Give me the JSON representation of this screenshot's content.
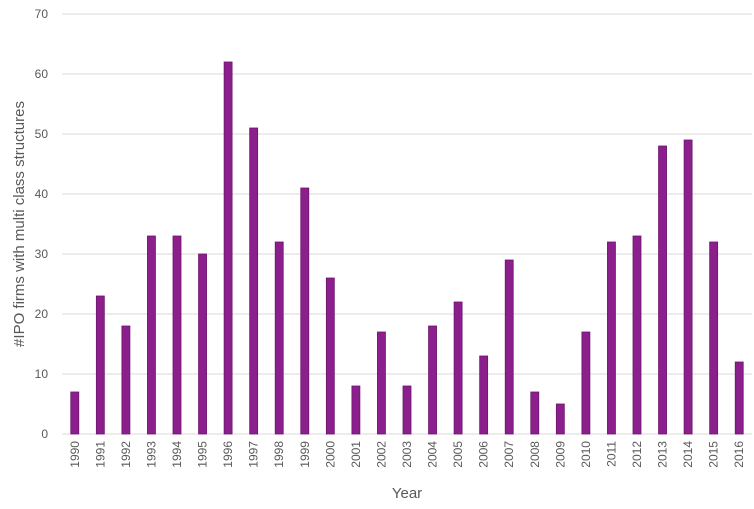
{
  "chart_data": {
    "type": "bar",
    "title": "",
    "xlabel": "Year",
    "ylabel": "#IPO firms with multi class structures",
    "categories": [
      "1990",
      "1991",
      "1992",
      "1993",
      "1994",
      "1995",
      "1996",
      "1997",
      "1998",
      "1999",
      "2000",
      "2001",
      "2002",
      "2003",
      "2004",
      "2005",
      "2006",
      "2007",
      "2008",
      "2009",
      "2010",
      "2011",
      "2012",
      "2013",
      "2014",
      "2015",
      "2016"
    ],
    "values": [
      7,
      23,
      18,
      33,
      33,
      30,
      62,
      51,
      32,
      41,
      26,
      8,
      17,
      8,
      18,
      22,
      13,
      29,
      7,
      5,
      17,
      32,
      33,
      48,
      49,
      32,
      12
    ],
    "ylim": [
      0,
      70
    ],
    "yticks": [
      0,
      10,
      20,
      30,
      40,
      50,
      60,
      70
    ],
    "grid": true,
    "legend": "none",
    "colors": {
      "bar": "#8B1F8C",
      "bar_edge": "#6E1470",
      "grid": "#D9D9D9",
      "text": "#595959"
    }
  }
}
